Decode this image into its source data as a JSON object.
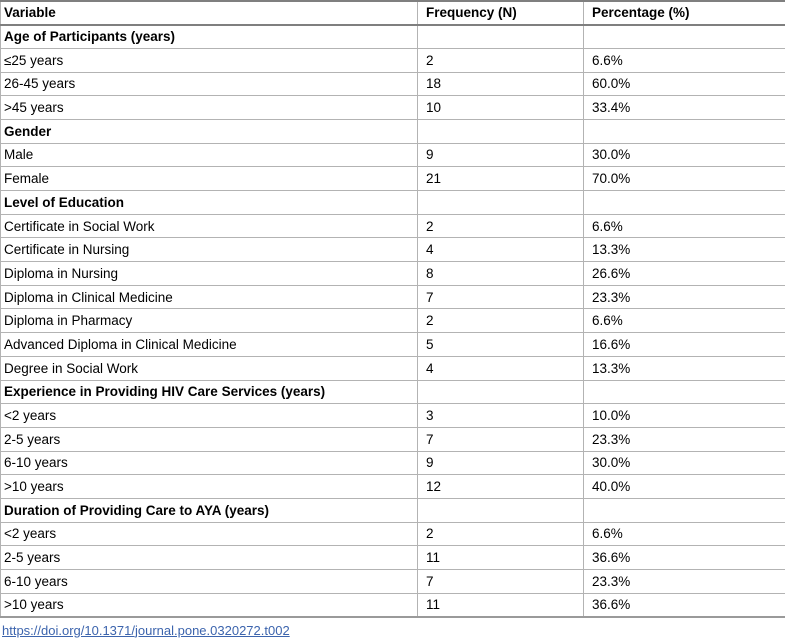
{
  "table": {
    "columns": [
      "Variable",
      "Frequency (N)",
      "Percentage (%)"
    ],
    "rows": [
      {
        "type": "section",
        "label": "Age of Participants (years)"
      },
      {
        "type": "data",
        "label": "≤25 years",
        "n": "2",
        "pct": "6.6%"
      },
      {
        "type": "data",
        "label": "26-45 years",
        "n": "18",
        "pct": "60.0%"
      },
      {
        "type": "data",
        "label": ">45 years",
        "n": "10",
        "pct": "33.4%"
      },
      {
        "type": "section",
        "label": "Gender"
      },
      {
        "type": "data",
        "label": "Male",
        "n": "9",
        "pct": "30.0%"
      },
      {
        "type": "data",
        "label": "Female",
        "n": "21",
        "pct": "70.0%"
      },
      {
        "type": "section",
        "label": "Level of Education"
      },
      {
        "type": "data",
        "label": "Certificate in Social Work",
        "n": "2",
        "pct": "6.6%"
      },
      {
        "type": "data",
        "label": "Certificate in Nursing",
        "n": "4",
        "pct": "13.3%"
      },
      {
        "type": "data",
        "label": "Diploma in Nursing",
        "n": "8",
        "pct": "26.6%"
      },
      {
        "type": "data",
        "label": "Diploma in Clinical Medicine",
        "n": "7",
        "pct": "23.3%"
      },
      {
        "type": "data",
        "label": "Diploma in Pharmacy",
        "n": "2",
        "pct": "6.6%"
      },
      {
        "type": "data",
        "label": "Advanced Diploma in Clinical Medicine",
        "n": "5",
        "pct": "16.6%"
      },
      {
        "type": "data",
        "label": "Degree in Social Work",
        "n": "4",
        "pct": "13.3%"
      },
      {
        "type": "section",
        "label": "Experience in Providing HIV Care Services (years)"
      },
      {
        "type": "data",
        "label": "<2 years",
        "n": "3",
        "pct": "10.0%"
      },
      {
        "type": "data",
        "label": "2-5 years",
        "n": "7",
        "pct": "23.3%"
      },
      {
        "type": "data",
        "label": "6-10 years",
        "n": "9",
        "pct": "30.0%"
      },
      {
        "type": "data",
        "label": ">10 years",
        "n": "12",
        "pct": "40.0%"
      },
      {
        "type": "section",
        "label": "Duration of Providing Care to AYA (years)"
      },
      {
        "type": "data",
        "label": "<2 years",
        "n": "2",
        "pct": "6.6%"
      },
      {
        "type": "data",
        "label": "2-5 years",
        "n": "11",
        "pct": "36.6%"
      },
      {
        "type": "data",
        "label": "6-10 years",
        "n": "7",
        "pct": "23.3%"
      },
      {
        "type": "data",
        "label": ">10 years",
        "n": "11",
        "pct": "36.6%"
      }
    ]
  },
  "footer": {
    "link_text": "https://doi.org/10.1371/journal.pone.0320272.t002"
  }
}
